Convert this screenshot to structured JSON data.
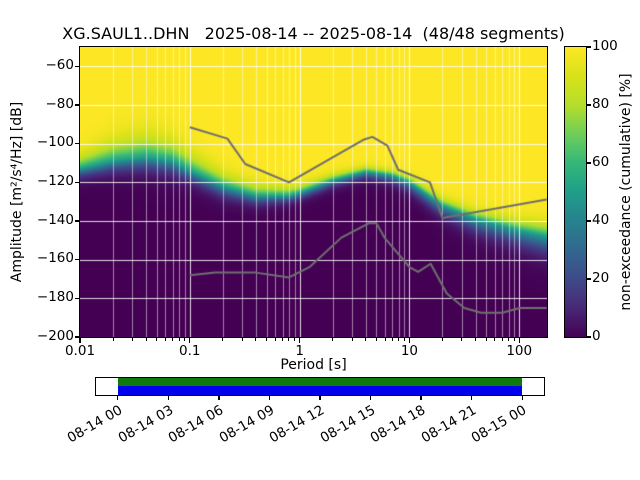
{
  "title": "XG.SAUL1..DHN   2025-08-14 -- 2025-08-14  (48/48 segments)",
  "axes": {
    "xlabel": "Period [s]",
    "ylabel": "Amplitude [m²/s⁴/Hz] [dB]",
    "x_ticks": [
      {
        "value": 0.01,
        "label": "0.01"
      },
      {
        "value": 0.1,
        "label": "0.1"
      },
      {
        "value": 1,
        "label": "1"
      },
      {
        "value": 10,
        "label": "10"
      },
      {
        "value": 100,
        "label": "100"
      }
    ],
    "y_ticks": [
      {
        "value": -60,
        "label": "−60"
      },
      {
        "value": -80,
        "label": "−80"
      },
      {
        "value": -100,
        "label": "−100"
      },
      {
        "value": -120,
        "label": "−120"
      },
      {
        "value": -140,
        "label": "−140"
      },
      {
        "value": -160,
        "label": "−160"
      },
      {
        "value": -180,
        "label": "−180"
      },
      {
        "value": -200,
        "label": "−200"
      }
    ]
  },
  "colorbar": {
    "label": "non-exceedance (cumulative) [%]",
    "ticks": [
      {
        "value": 0,
        "label": "0"
      },
      {
        "value": 20,
        "label": "20"
      },
      {
        "value": 40,
        "label": "40"
      },
      {
        "value": 60,
        "label": "60"
      },
      {
        "value": 80,
        "label": "80"
      },
      {
        "value": 100,
        "label": "100"
      }
    ],
    "stops": [
      "#440154",
      "#482878",
      "#3e4a89",
      "#31688e",
      "#26828e",
      "#1f9e89",
      "#35b779",
      "#6ece58",
      "#b5de2b",
      "#d8e219",
      "#fde725"
    ]
  },
  "chart_data": {
    "type": "heatmap",
    "subtype": "ppsd-cumulative-distribution",
    "title": "XG.SAUL1..DHN   2025-08-14 -- 2025-08-14  (48/48 segments)",
    "station": "XG.SAUL1..DHN",
    "date_start": "2025-08-14",
    "date_end": "2025-08-14",
    "segments": "48/48",
    "xlabel": "Period [s]",
    "ylabel": "Amplitude [m²/s⁴/Hz] [dB]",
    "x_scale": "log",
    "xlim": [
      0.01,
      179
    ],
    "ylim": [
      -200,
      -50
    ],
    "grid": true,
    "colormap": "viridis",
    "colorbar_label": "non-exceedance (cumulative) [%]",
    "colorbar_range": [
      0,
      100
    ],
    "distribution": {
      "periods": [
        0.01,
        0.02,
        0.04,
        0.07,
        0.1,
        0.2,
        0.4,
        0.8,
        1,
        2,
        4,
        7,
        10,
        20,
        40,
        100,
        178
      ],
      "median_db": [
        -113,
        -109,
        -107,
        -109,
        -114,
        -122,
        -127,
        -127,
        -125.5,
        -119,
        -114.5,
        -116.5,
        -120,
        -132,
        -139,
        -145,
        -148
      ],
      "spread_up_db": [
        6,
        9,
        10,
        9,
        8,
        6,
        5,
        4,
        3.5,
        3,
        2.5,
        2.5,
        3,
        3.5,
        4,
        5,
        6
      ],
      "spread_down_db": [
        4,
        5,
        6,
        6,
        5,
        5,
        4,
        3,
        3,
        3,
        3,
        3.5,
        4,
        5,
        6,
        7,
        8
      ]
    },
    "noise_models": {
      "high": [
        [
          0.1,
          -91.5
        ],
        [
          0.22,
          -97.4
        ],
        [
          0.32,
          -110.5
        ],
        [
          0.8,
          -120
        ],
        [
          3.8,
          -98
        ],
        [
          4.6,
          -96.5
        ],
        [
          6.3,
          -101
        ],
        [
          7.9,
          -113.5
        ],
        [
          15.4,
          -120
        ],
        [
          20,
          -138.5
        ],
        [
          178,
          -128.9
        ]
      ],
      "low": [
        [
          0.1,
          -168
        ],
        [
          0.17,
          -166.7
        ],
        [
          0.4,
          -166.7
        ],
        [
          0.8,
          -169.2
        ],
        [
          1.24,
          -163.7
        ],
        [
          2.4,
          -148.6
        ],
        [
          4.3,
          -141.1
        ],
        [
          5,
          -141.1
        ],
        [
          6,
          -149
        ],
        [
          10,
          -163.8
        ],
        [
          12,
          -166.3
        ],
        [
          15.6,
          -162.1
        ],
        [
          21.9,
          -177.5
        ],
        [
          31.6,
          -185
        ],
        [
          45,
          -187.5
        ],
        [
          70,
          -187.5
        ],
        [
          101,
          -185
        ],
        [
          178,
          -185
        ]
      ],
      "line_color": "#6f6f6f"
    },
    "timeline": {
      "range_hours": [
        -1.3,
        25.3
      ],
      "coverage_hours": [
        0,
        24
      ],
      "tick_hours": [
        0,
        3,
        6,
        9,
        12,
        15,
        18,
        21,
        24
      ],
      "tick_labels": [
        "08-14 00",
        "08-14 03",
        "08-14 06",
        "08-14 09",
        "08-14 12",
        "08-14 15",
        "08-14 18",
        "08-14 21",
        "08-15 00"
      ],
      "top_color": "#0c7a0c",
      "bottom_color": "#0000ee"
    }
  }
}
